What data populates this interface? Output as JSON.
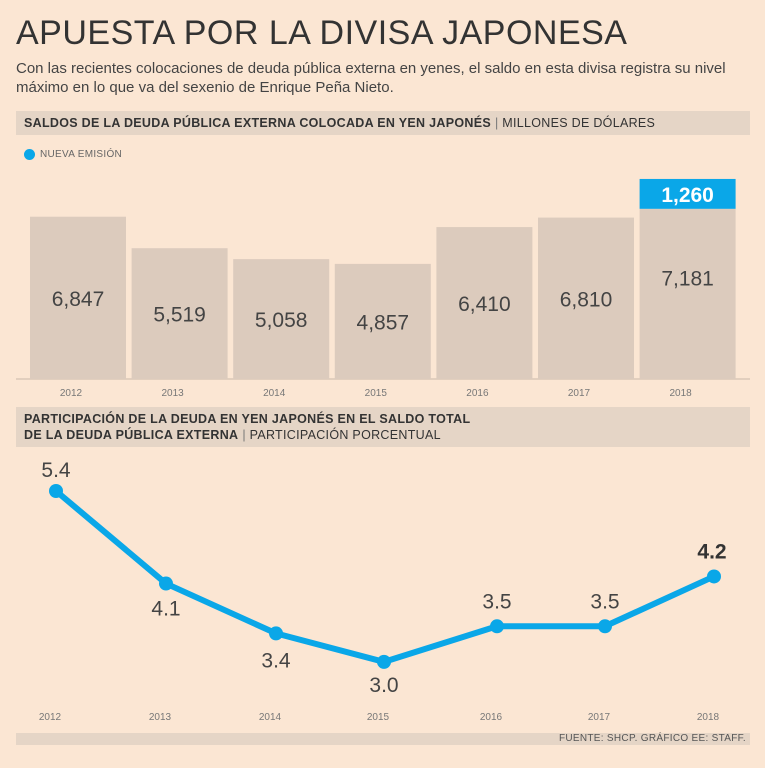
{
  "header": {
    "title": "APUESTA POR LA DIVISA JAPONESA",
    "subtitle": "Con las recientes colocaciones de deuda pública externa en yenes, el saldo en esta divisa registra su nivel máximo en lo que va del sexenio de Enrique Peña Nieto."
  },
  "colors": {
    "bar": "#dccbbd",
    "new_issue": "#0aa7e8",
    "line": "#0aa7e8"
  },
  "chart_data": [
    {
      "type": "bar",
      "title": "SALDOS DE LA DEUDA PÚBLICA EXTERNA COLOCADA EN YEN JAPONÉS",
      "unit": "MILLONES DE DÓLARES",
      "legend": "NUEVA EMISIÓN",
      "categories": [
        "2012",
        "2013",
        "2014",
        "2015",
        "2016",
        "2017",
        "2018"
      ],
      "series": [
        {
          "name": "Saldo",
          "values": [
            6847,
            5519,
            5058,
            4857,
            6410,
            6810,
            7181
          ]
        },
        {
          "name": "NUEVA EMISIÓN",
          "values": [
            0,
            0,
            0,
            0,
            0,
            0,
            1260
          ]
        }
      ],
      "labels": [
        "6,847",
        "5,519",
        "5,058",
        "4,857",
        "6,410",
        "6,810",
        "7,181"
      ],
      "new_issue_label": "1,260"
    },
    {
      "type": "line",
      "title_line1": "PARTICIPACIÓN DE LA DEUDA EN YEN JAPONÉS EN EL SALDO TOTAL",
      "title_line2": "DE LA DEUDA PÚBLICA EXTERNA",
      "unit": "PARTICIPACIÓN PORCENTUAL",
      "categories": [
        "2012",
        "2013",
        "2014",
        "2015",
        "2016",
        "2017",
        "2018"
      ],
      "values": [
        5.4,
        4.1,
        3.4,
        3.0,
        3.5,
        3.5,
        4.2
      ],
      "labels": [
        "5.4",
        "4.1",
        "3.4",
        "3.0",
        "3.5",
        "3.5",
        "4.2"
      ]
    }
  ],
  "footer": {
    "source": "FUENTE: SHCP.   GRÁFICO EE: STAFF."
  }
}
